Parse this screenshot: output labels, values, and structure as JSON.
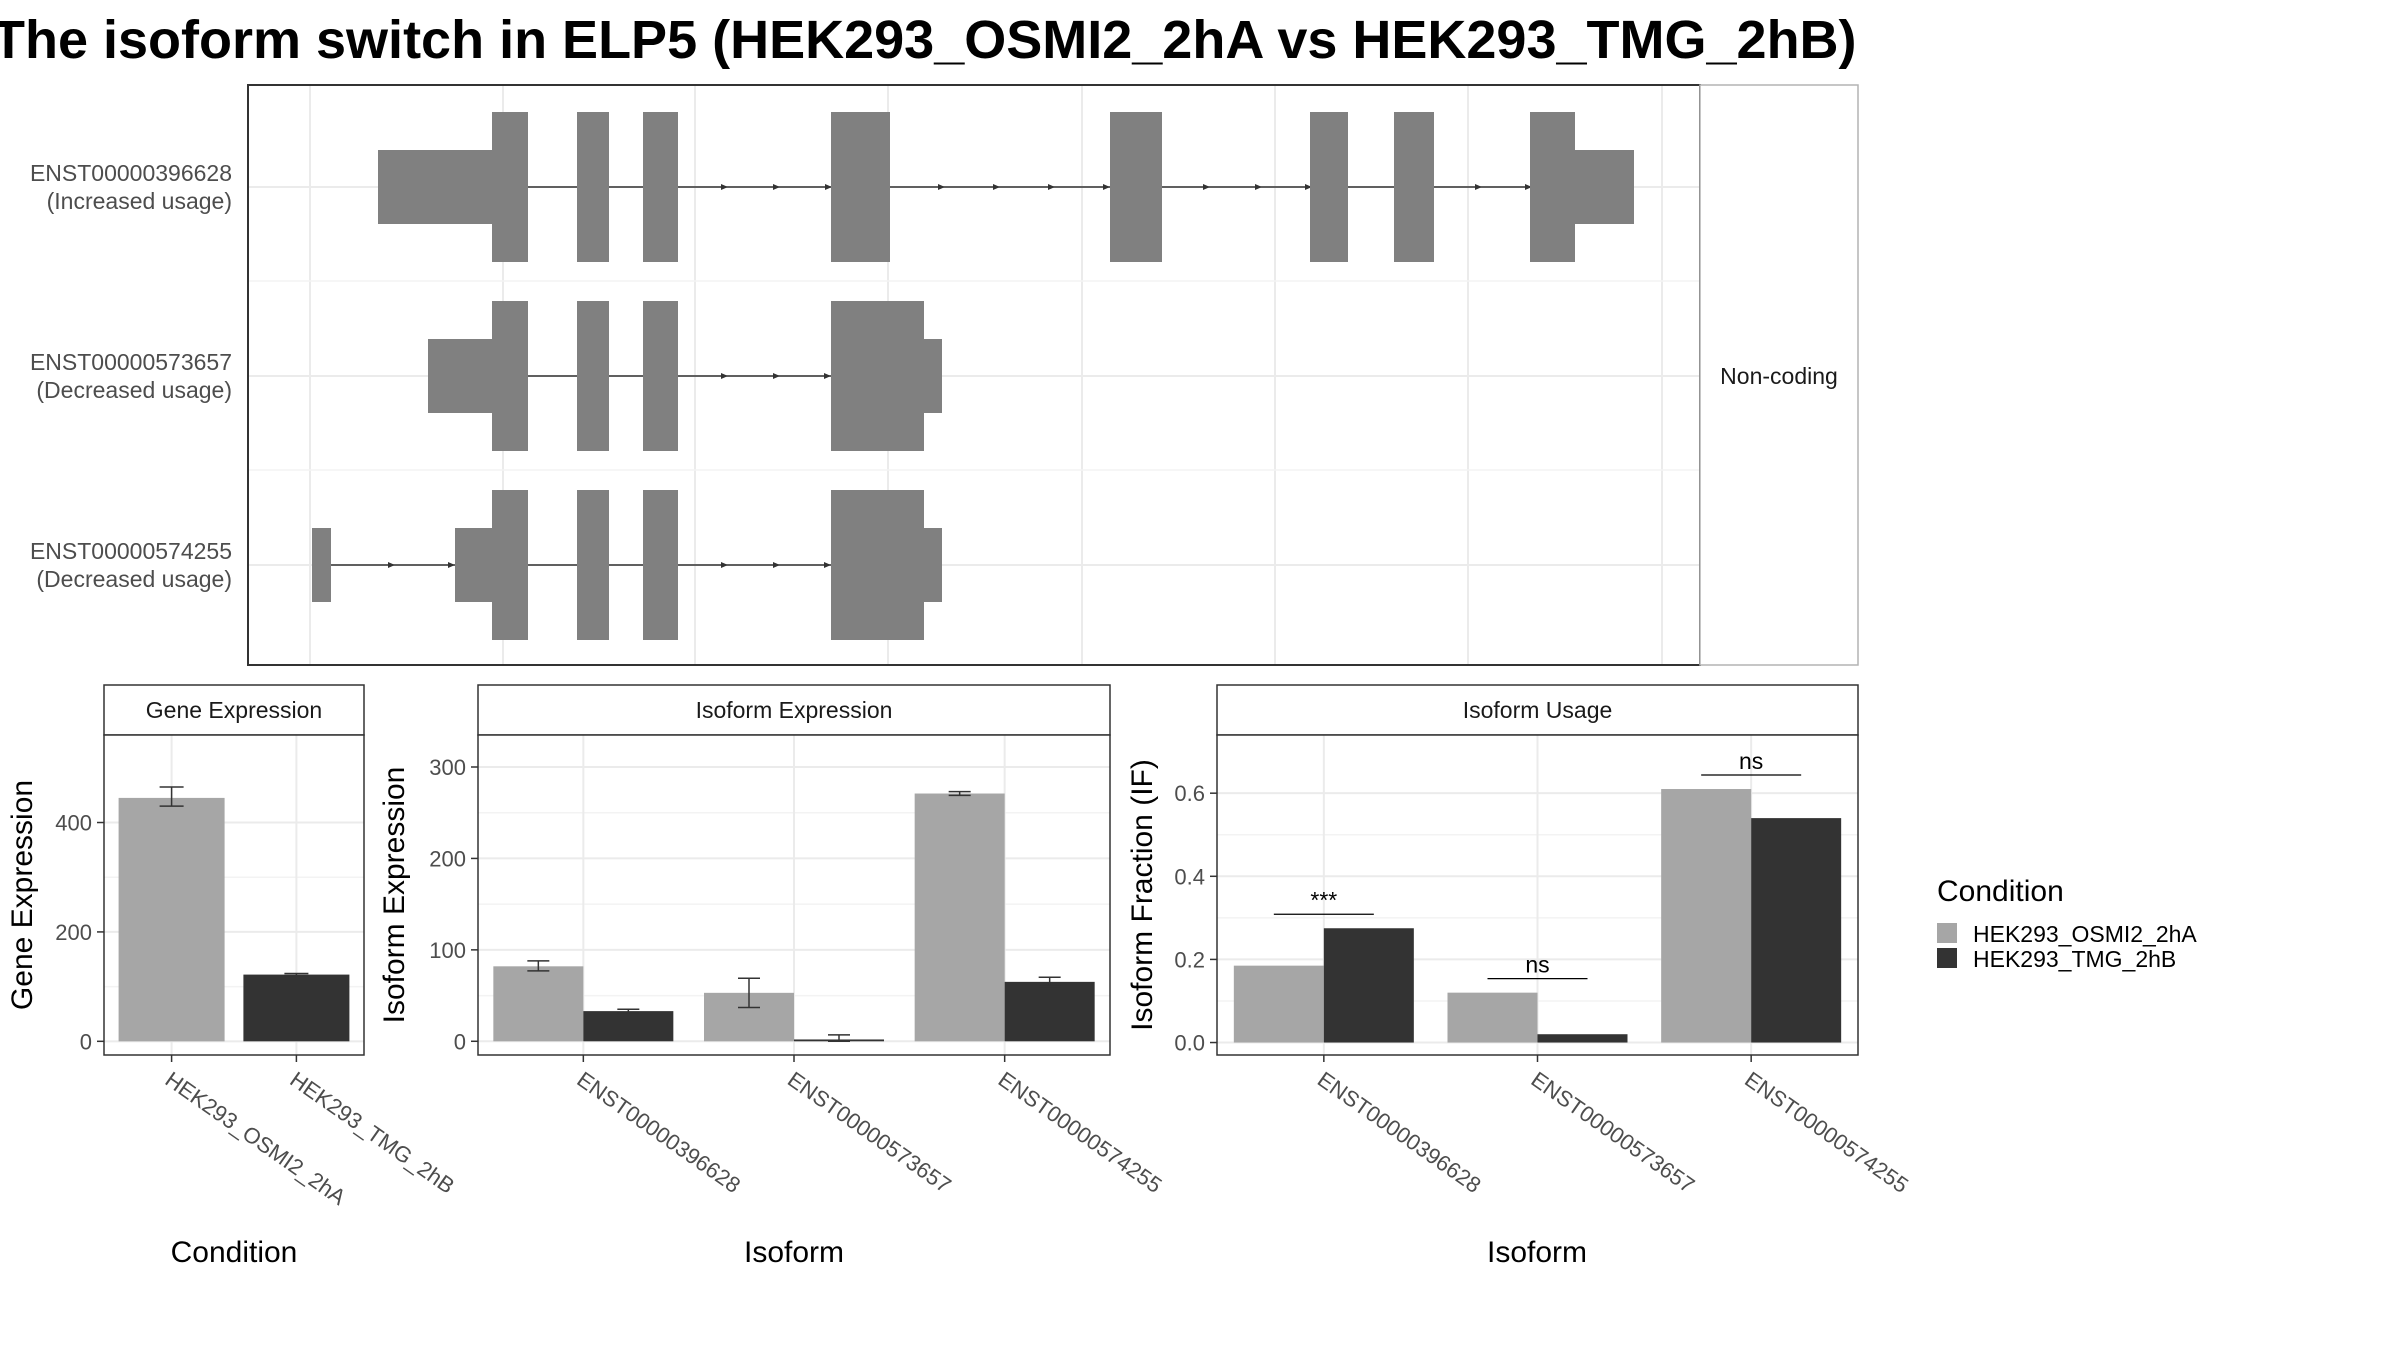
{
  "chart_data": [
    {
      "type": "transcript-structure",
      "title": "The isoform switch in ELP5 (HEK293_OSMI2_2hA vs HEK293_TMG_2hB)",
      "strip_label": "Non-coding",
      "transcripts": [
        {
          "id": "ENST00000396628",
          "usage": "(Increased usage)"
        },
        {
          "id": "ENST00000573657",
          "usage": "(Decreased usage)"
        },
        {
          "id": "ENST00000574255",
          "usage": "(Decreased usage)"
        }
      ],
      "color": "#808080"
    },
    {
      "type": "bar",
      "facet": "Gene Expression",
      "xlabel": "Condition",
      "ylabel": "Gene Expression",
      "ylim": [
        -25,
        560
      ],
      "yticks": [
        0,
        200,
        400
      ],
      "categories": [
        "HEK293_OSMI2_2hA",
        "HEK293_TMG_2hB"
      ],
      "values": [
        445,
        122
      ],
      "errors": [
        [
          430,
          465
        ],
        [
          120,
          124
        ]
      ]
    },
    {
      "type": "bar",
      "facet": "Isoform Expression",
      "xlabel": "Isoform",
      "ylabel": "Isoform Expression",
      "ylim": [
        -15,
        335
      ],
      "yticks": [
        0,
        100,
        200,
        300
      ],
      "categories": [
        "ENST00000396628",
        "ENST00000573657",
        "ENST00000574255"
      ],
      "series": [
        {
          "name": "HEK293_OSMI2_2hA",
          "values": [
            82,
            53,
            271
          ],
          "errors": [
            [
              77,
              88
            ],
            [
              37,
              69
            ],
            [
              269,
              273
            ]
          ]
        },
        {
          "name": "HEK293_TMG_2hB",
          "values": [
            33,
            2,
            65
          ],
          "errors": [
            [
              31,
              35
            ],
            [
              0,
              7
            ],
            [
              60,
              70
            ]
          ]
        }
      ]
    },
    {
      "type": "bar",
      "facet": "Isoform Usage",
      "xlabel": "Isoform",
      "ylabel": "Isoform Fraction (IF)",
      "ylim": [
        -0.03,
        0.74
      ],
      "yticks": [
        0.0,
        0.2,
        0.4,
        0.6
      ],
      "ytick_labels": [
        "0.0",
        "0.2",
        "0.4",
        "0.6"
      ],
      "categories": [
        "ENST00000396628",
        "ENST00000573657",
        "ENST00000574255"
      ],
      "series": [
        {
          "name": "HEK293_OSMI2_2hA",
          "values": [
            0.185,
            0.12,
            0.61
          ]
        },
        {
          "name": "HEK293_TMG_2hB",
          "values": [
            0.275,
            0.02,
            0.54
          ]
        }
      ],
      "significance": [
        "***",
        "ns",
        "ns"
      ]
    }
  ],
  "legend": {
    "title": "Condition",
    "items": [
      {
        "label": "HEK293_OSMI2_2hA",
        "color": "#a6a6a6"
      },
      {
        "label": "HEK293_TMG_2hB",
        "color": "#333333"
      }
    ]
  },
  "colors": {
    "grid": "#ebebeb",
    "panel_border": "#333333",
    "strip_fill": "#ffffff"
  }
}
